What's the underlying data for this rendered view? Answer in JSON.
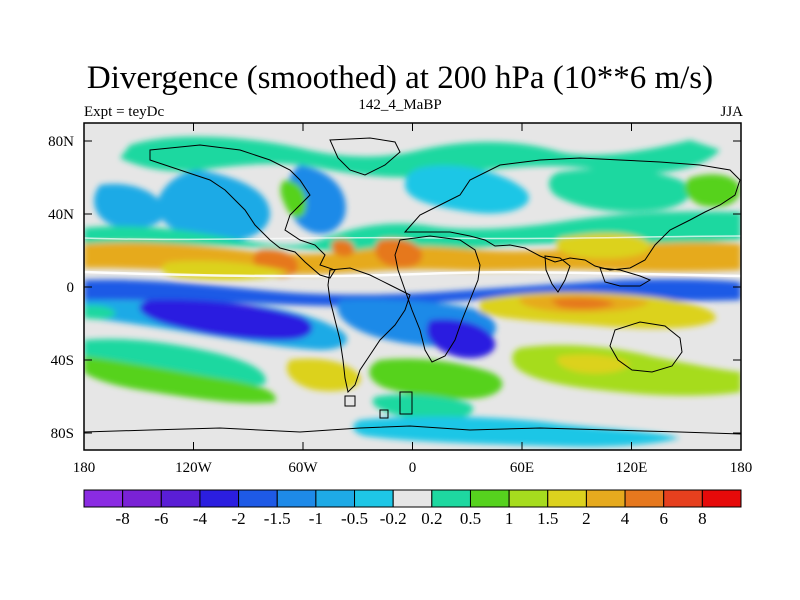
{
  "title": "Divergence (smoothed) at 200 hPa (10**6 m/s)",
  "experiment": "Expt = teyDc",
  "subtitle": "142_4_MaBP",
  "season": "JJA",
  "map": {
    "projection": "cylindrical equidistant",
    "x_ticks": [
      "180",
      "120W",
      "60W",
      "0",
      "60E",
      "120E",
      "180"
    ],
    "y_ticks": [
      "80N",
      "40N",
      "0",
      "40S",
      "80S"
    ]
  },
  "colorbar": {
    "levels": [
      "-8",
      "-6",
      "-4",
      "-2",
      "-1.5",
      "-1",
      "-0.5",
      "-0.2",
      "0.2",
      "0.5",
      "1",
      "1.5",
      "2",
      "4",
      "6",
      "8"
    ],
    "colors": [
      "#8a2be2",
      "#7a22d6",
      "#5a1ed6",
      "#2b1ee0",
      "#1e5ae6",
      "#1e8ae8",
      "#1eaae6",
      "#1ec6e6",
      "#e6e6e6",
      "#1ed8a0",
      "#56d21e",
      "#a6dc1e",
      "#dcd21e",
      "#e6aa1e",
      "#e6781e",
      "#e6401e",
      "#e60a0a"
    ]
  }
}
